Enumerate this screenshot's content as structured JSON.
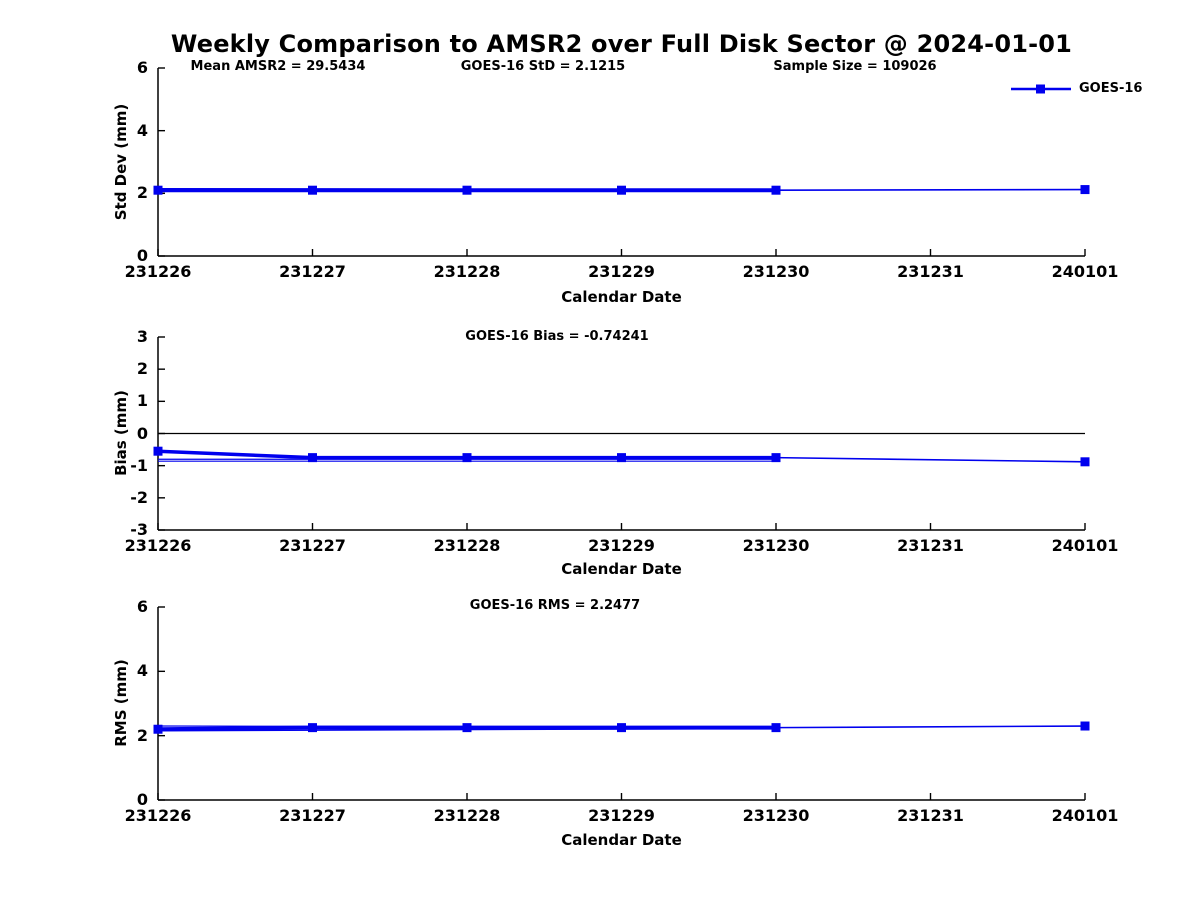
{
  "title": "Weekly Comparison to AMSR2 over Full Disk Sector @ 2024-01-01",
  "legend": {
    "label": "GOES-16"
  },
  "colors": {
    "series": "#0000EE",
    "axis": "#000000",
    "zero_line": "#000000",
    "background": "#FFFFFF",
    "text": "#000000"
  },
  "chart_data": [
    {
      "type": "line",
      "panel": "std-dev",
      "title": "",
      "annotations": [
        "Mean AMSR2 = 29.5434",
        "GOES-16 StD = 2.1215",
        "Sample Size = 109026"
      ],
      "xlabel": "Calendar Date",
      "ylabel": "Std Dev (mm)",
      "categories": [
        "231226",
        "231227",
        "231228",
        "231229",
        "231230",
        "231231",
        "240101"
      ],
      "ylim": [
        0,
        6
      ],
      "yticks": [
        0,
        2,
        4,
        6
      ],
      "zero_line": false,
      "legend_entries": [
        "GOES-16"
      ],
      "legend_position": "top-right",
      "grid": false,
      "series": [
        {
          "name": "weekly-band-upper",
          "x": [
            0,
            4
          ],
          "y": [
            2.15,
            2.12
          ],
          "line_width": 1.2,
          "markers": false,
          "end_marker": false
        },
        {
          "name": "weekly-band-lower",
          "x": [
            0,
            4
          ],
          "y": [
            2.06,
            2.09
          ],
          "line_width": 1.2,
          "markers": false,
          "end_marker": false
        },
        {
          "name": "GOES-16-daily-stddev",
          "x": [
            0,
            1,
            2,
            3,
            4
          ],
          "y": [
            2.1,
            2.1,
            2.1,
            2.1,
            2.1
          ],
          "line_width": 4,
          "markers": true,
          "end_marker": false
        },
        {
          "name": "GOES-16-week-extension",
          "x": [
            4,
            6
          ],
          "y": [
            2.1,
            2.12
          ],
          "line_width": 1.6,
          "markers": false,
          "end_marker": true
        }
      ]
    },
    {
      "type": "line",
      "panel": "bias",
      "title": "GOES-16 Bias  = -0.74241",
      "annotations": [],
      "xlabel": "Calendar Date",
      "ylabel": "Bias (mm)",
      "categories": [
        "231226",
        "231227",
        "231228",
        "231229",
        "231230",
        "231231",
        "240101"
      ],
      "ylim": [
        -3,
        3
      ],
      "yticks": [
        -3,
        -2,
        -1,
        0,
        1,
        2,
        3
      ],
      "zero_line": true,
      "grid": false,
      "series": [
        {
          "name": "weekly-band-lower",
          "x": [
            0,
            4
          ],
          "y": [
            -0.86,
            -0.86
          ],
          "line_width": 1.2,
          "markers": false,
          "end_marker": false
        },
        {
          "name": "weekly-band-mid",
          "x": [
            0,
            4
          ],
          "y": [
            -0.8,
            -0.8
          ],
          "line_width": 1.2,
          "markers": false,
          "end_marker": false
        },
        {
          "name": "GOES-16-daily-bias",
          "x": [
            0,
            1,
            2,
            3,
            4
          ],
          "y": [
            -0.55,
            -0.75,
            -0.75,
            -0.75,
            -0.75
          ],
          "line_width": 3.5,
          "markers": true,
          "end_marker": false
        },
        {
          "name": "GOES-16-week-extension",
          "x": [
            4,
            6
          ],
          "y": [
            -0.75,
            -0.88
          ],
          "line_width": 1.6,
          "markers": false,
          "end_marker": true
        }
      ]
    },
    {
      "type": "line",
      "panel": "rms",
      "title": "GOES-16 RMS = 2.2477",
      "annotations": [],
      "xlabel": "Calendar Date",
      "ylabel": "RMS (mm)",
      "categories": [
        "231226",
        "231227",
        "231228",
        "231229",
        "231230",
        "231231",
        "240101"
      ],
      "ylim": [
        0,
        6
      ],
      "yticks": [
        0,
        2,
        4,
        6
      ],
      "zero_line": false,
      "grid": false,
      "series": [
        {
          "name": "weekly-band-upper",
          "x": [
            0,
            4
          ],
          "y": [
            2.3,
            2.27
          ],
          "line_width": 1.2,
          "markers": false,
          "end_marker": false
        },
        {
          "name": "weekly-band-lower",
          "x": [
            0,
            4
          ],
          "y": [
            2.15,
            2.22
          ],
          "line_width": 1.2,
          "markers": false,
          "end_marker": false
        },
        {
          "name": "GOES-16-daily-rms",
          "x": [
            0,
            1,
            2,
            3,
            4
          ],
          "y": [
            2.2,
            2.25,
            2.25,
            2.25,
            2.25
          ],
          "line_width": 4,
          "markers": true,
          "end_marker": false
        },
        {
          "name": "GOES-16-week-extension",
          "x": [
            4,
            6
          ],
          "y": [
            2.25,
            2.3
          ],
          "line_width": 1.6,
          "markers": false,
          "end_marker": true
        }
      ]
    }
  ]
}
